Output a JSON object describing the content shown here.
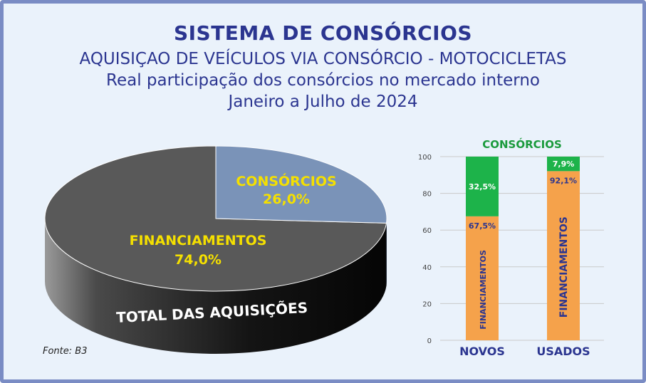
{
  "titles": {
    "main": "SISTEMA DE CONSÓRCIOS",
    "line2": "AQUISIÇAO DE VEÍCULOS VIA CONSÓRCIO - MOTOCICLETAS",
    "line3": "Real participação dos consórcios no mercado interno",
    "line4": "Janeiro a Julho de 2024"
  },
  "source": "Fonte: B3",
  "colors": {
    "title": "#2b3590",
    "pie_financiamentos": "#595959",
    "pie_consorcios": "#7a93b8",
    "pie_label": "#f5e000",
    "bar_consorcios": "#1db34a",
    "bar_financiamentos": "#f5a24b",
    "bar_header": "#1a9a3c"
  },
  "chart_data": [
    {
      "type": "pie",
      "caption": "TOTAL DAS AQUISIÇÕES",
      "slices": [
        {
          "label": "CONSÓRCIOS",
          "value": 26.0,
          "value_label": "26,0%"
        },
        {
          "label": "FINANCIAMENTOS",
          "value": 74.0,
          "value_label": "74,0%"
        }
      ]
    },
    {
      "type": "bar",
      "stacked": true,
      "title": "CONSÓRCIOS",
      "categories": [
        "NOVOS",
        "USADOS"
      ],
      "ylim": [
        0,
        100
      ],
      "yticks": [
        0,
        20,
        40,
        60,
        80,
        100
      ],
      "series": [
        {
          "name": "FINANCIAMENTOS",
          "values": [
            67.5,
            92.1
          ],
          "value_labels": [
            "67,5%",
            "92,1%"
          ]
        },
        {
          "name": "CONSÓRCIOS",
          "values": [
            32.5,
            7.9
          ],
          "value_labels": [
            "32,5%",
            "7,9%"
          ]
        }
      ]
    }
  ]
}
